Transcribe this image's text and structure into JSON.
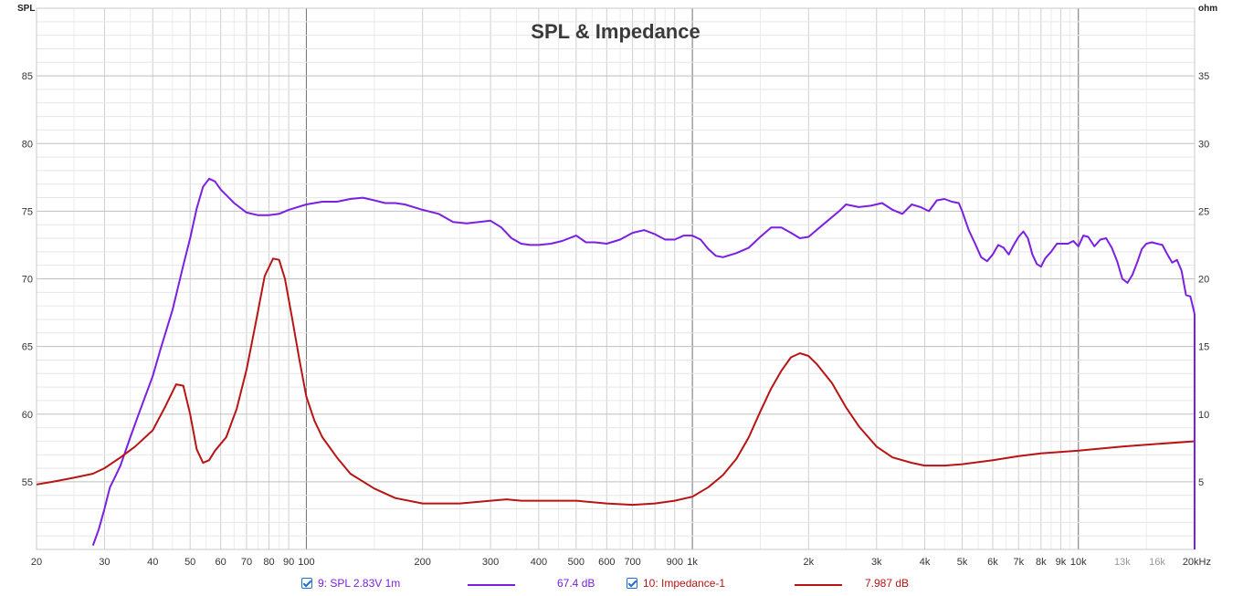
{
  "chart_data": {
    "type": "line",
    "title": "SPL & Impedance",
    "x_unit": "Hz",
    "x_scale": "log",
    "xlim": [
      20,
      20000
    ],
    "y_left": {
      "label": "SPL",
      "lim": [
        50,
        90
      ],
      "ticks": [
        "55",
        "60",
        "65",
        "70",
        "75",
        "80",
        "85"
      ]
    },
    "y_right": {
      "label": "ohm",
      "lim": [
        0,
        40
      ],
      "ticks": [
        "5",
        "10",
        "15",
        "20",
        "25",
        "30",
        "35"
      ]
    },
    "x_ticks": [
      {
        "v": 20,
        "t": "20"
      },
      {
        "v": 30,
        "t": "30"
      },
      {
        "v": 40,
        "t": "40"
      },
      {
        "v": 50,
        "t": "50"
      },
      {
        "v": 60,
        "t": "60"
      },
      {
        "v": 70,
        "t": "70"
      },
      {
        "v": 80,
        "t": "80"
      },
      {
        "v": 90,
        "t": "90"
      },
      {
        "v": 100,
        "t": "100"
      },
      {
        "v": 200,
        "t": "200"
      },
      {
        "v": 300,
        "t": "300"
      },
      {
        "v": 400,
        "t": "400"
      },
      {
        "v": 500,
        "t": "500"
      },
      {
        "v": 600,
        "t": "600"
      },
      {
        "v": 700,
        "t": "700"
      },
      {
        "v": 900,
        "t": "900"
      },
      {
        "v": 1000,
        "t": "1k"
      },
      {
        "v": 2000,
        "t": "2k"
      },
      {
        "v": 3000,
        "t": "3k"
      },
      {
        "v": 4000,
        "t": "4k"
      },
      {
        "v": 5000,
        "t": "5k"
      },
      {
        "v": 6000,
        "t": "6k"
      },
      {
        "v": 7000,
        "t": "7k"
      },
      {
        "v": 8000,
        "t": "8k"
      },
      {
        "v": 9000,
        "t": "9k"
      },
      {
        "v": 10000,
        "t": "10k"
      },
      {
        "v": 13000,
        "t": "13k",
        "minor": true
      },
      {
        "v": 16000,
        "t": "16k",
        "minor": true
      },
      {
        "v": 20000,
        "t": "20kHz"
      }
    ],
    "grid": true,
    "legend_position": "bottom",
    "series": [
      {
        "name": "9: SPL 2.83V 1m",
        "axis": "left",
        "color": "#7b1fe0",
        "value_label": "67.4 dB",
        "points": [
          [
            28,
            50.3
          ],
          [
            29,
            51.5
          ],
          [
            30,
            53
          ],
          [
            31,
            54.6
          ],
          [
            32,
            55.4
          ],
          [
            33,
            56.2
          ],
          [
            35,
            58.3
          ],
          [
            37,
            60.2
          ],
          [
            40,
            62.8
          ],
          [
            42,
            64.9
          ],
          [
            45,
            67.7
          ],
          [
            48,
            71
          ],
          [
            50,
            73
          ],
          [
            52,
            75.2
          ],
          [
            54,
            76.8
          ],
          [
            56,
            77.4
          ],
          [
            58,
            77.2
          ],
          [
            60,
            76.6
          ],
          [
            65,
            75.6
          ],
          [
            70,
            74.9
          ],
          [
            75,
            74.7
          ],
          [
            80,
            74.7
          ],
          [
            85,
            74.8
          ],
          [
            90,
            75.1
          ],
          [
            100,
            75.5
          ],
          [
            110,
            75.7
          ],
          [
            120,
            75.7
          ],
          [
            130,
            75.9
          ],
          [
            140,
            76
          ],
          [
            150,
            75.8
          ],
          [
            160,
            75.6
          ],
          [
            170,
            75.6
          ],
          [
            180,
            75.5
          ],
          [
            200,
            75.1
          ],
          [
            220,
            74.8
          ],
          [
            240,
            74.2
          ],
          [
            260,
            74.1
          ],
          [
            280,
            74.2
          ],
          [
            300,
            74.3
          ],
          [
            320,
            73.8
          ],
          [
            340,
            73
          ],
          [
            360,
            72.6
          ],
          [
            380,
            72.5
          ],
          [
            400,
            72.5
          ],
          [
            430,
            72.6
          ],
          [
            460,
            72.8
          ],
          [
            500,
            73.2
          ],
          [
            530,
            72.7
          ],
          [
            560,
            72.7
          ],
          [
            600,
            72.6
          ],
          [
            650,
            72.9
          ],
          [
            700,
            73.4
          ],
          [
            750,
            73.6
          ],
          [
            800,
            73.3
          ],
          [
            850,
            72.9
          ],
          [
            900,
            72.9
          ],
          [
            950,
            73.2
          ],
          [
            1000,
            73.2
          ],
          [
            1050,
            72.9
          ],
          [
            1100,
            72.2
          ],
          [
            1150,
            71.7
          ],
          [
            1200,
            71.6
          ],
          [
            1300,
            71.9
          ],
          [
            1400,
            72.3
          ],
          [
            1500,
            73.1
          ],
          [
            1600,
            73.8
          ],
          [
            1700,
            73.8
          ],
          [
            1800,
            73.4
          ],
          [
            1900,
            73
          ],
          [
            2000,
            73.1
          ],
          [
            2200,
            74.1
          ],
          [
            2400,
            75
          ],
          [
            2500,
            75.5
          ],
          [
            2700,
            75.3
          ],
          [
            2900,
            75.4
          ],
          [
            3100,
            75.6
          ],
          [
            3300,
            75.1
          ],
          [
            3500,
            74.8
          ],
          [
            3700,
            75.5
          ],
          [
            3900,
            75.3
          ],
          [
            4100,
            75
          ],
          [
            4300,
            75.8
          ],
          [
            4500,
            75.9
          ],
          [
            4700,
            75.7
          ],
          [
            4900,
            75.6
          ],
          [
            5000,
            75
          ],
          [
            5200,
            73.6
          ],
          [
            5400,
            72.6
          ],
          [
            5600,
            71.6
          ],
          [
            5800,
            71.3
          ],
          [
            6000,
            71.8
          ],
          [
            6200,
            72.5
          ],
          [
            6400,
            72.3
          ],
          [
            6600,
            71.8
          ],
          [
            6800,
            72.5
          ],
          [
            7000,
            73.1
          ],
          [
            7200,
            73.5
          ],
          [
            7400,
            73
          ],
          [
            7600,
            71.8
          ],
          [
            7800,
            71.1
          ],
          [
            8000,
            70.9
          ],
          [
            8200,
            71.5
          ],
          [
            8500,
            72
          ],
          [
            8800,
            72.6
          ],
          [
            9100,
            72.6
          ],
          [
            9400,
            72.6
          ],
          [
            9700,
            72.8
          ],
          [
            10000,
            72.4
          ],
          [
            10300,
            73.2
          ],
          [
            10600,
            73.1
          ],
          [
            11000,
            72.4
          ],
          [
            11400,
            72.9
          ],
          [
            11800,
            73
          ],
          [
            12200,
            72.3
          ],
          [
            12600,
            71.3
          ],
          [
            13000,
            70
          ],
          [
            13400,
            69.7
          ],
          [
            13800,
            70.3
          ],
          [
            14200,
            71.2
          ],
          [
            14600,
            72.2
          ],
          [
            15000,
            72.6
          ],
          [
            15500,
            72.7
          ],
          [
            16000,
            72.6
          ],
          [
            16500,
            72.5
          ],
          [
            17000,
            71.8
          ],
          [
            17500,
            71.2
          ],
          [
            18000,
            71.4
          ],
          [
            18500,
            70.6
          ],
          [
            19000,
            68.8
          ],
          [
            19500,
            68.7
          ],
          [
            20000,
            67.4
          ]
        ]
      },
      {
        "name": "10: Impedance-1",
        "axis": "right",
        "color": "#b81414",
        "value_label": "7.987 dB",
        "points": [
          [
            20,
            4.8
          ],
          [
            22,
            5
          ],
          [
            25,
            5.3
          ],
          [
            28,
            5.6
          ],
          [
            30,
            6
          ],
          [
            33,
            6.8
          ],
          [
            36,
            7.6
          ],
          [
            40,
            8.8
          ],
          [
            43,
            10.5
          ],
          [
            46,
            12.2
          ],
          [
            48,
            12.1
          ],
          [
            50,
            10
          ],
          [
            52,
            7.4
          ],
          [
            54,
            6.4
          ],
          [
            56,
            6.6
          ],
          [
            58,
            7.3
          ],
          [
            62,
            8.3
          ],
          [
            66,
            10.4
          ],
          [
            70,
            13.3
          ],
          [
            74,
            16.8
          ],
          [
            78,
            20.2
          ],
          [
            82,
            21.5
          ],
          [
            85,
            21.4
          ],
          [
            88,
            20
          ],
          [
            92,
            17
          ],
          [
            96,
            14
          ],
          [
            100,
            11.3
          ],
          [
            105,
            9.5
          ],
          [
            110,
            8.3
          ],
          [
            120,
            6.8
          ],
          [
            130,
            5.6
          ],
          [
            150,
            4.5
          ],
          [
            170,
            3.8
          ],
          [
            200,
            3.4
          ],
          [
            250,
            3.4
          ],
          [
            300,
            3.6
          ],
          [
            330,
            3.7
          ],
          [
            360,
            3.6
          ],
          [
            400,
            3.6
          ],
          [
            500,
            3.6
          ],
          [
            600,
            3.4
          ],
          [
            700,
            3.3
          ],
          [
            800,
            3.4
          ],
          [
            900,
            3.6
          ],
          [
            1000,
            3.9
          ],
          [
            1100,
            4.6
          ],
          [
            1200,
            5.5
          ],
          [
            1300,
            6.7
          ],
          [
            1400,
            8.3
          ],
          [
            1500,
            10.2
          ],
          [
            1600,
            11.9
          ],
          [
            1700,
            13.2
          ],
          [
            1800,
            14.2
          ],
          [
            1900,
            14.5
          ],
          [
            2000,
            14.3
          ],
          [
            2100,
            13.7
          ],
          [
            2300,
            12.3
          ],
          [
            2500,
            10.5
          ],
          [
            2700,
            9.1
          ],
          [
            3000,
            7.6
          ],
          [
            3300,
            6.8
          ],
          [
            3700,
            6.4
          ],
          [
            4000,
            6.2
          ],
          [
            4500,
            6.2
          ],
          [
            5000,
            6.3
          ],
          [
            6000,
            6.6
          ],
          [
            7000,
            6.9
          ],
          [
            8000,
            7.1
          ],
          [
            10000,
            7.3
          ],
          [
            13000,
            7.6
          ],
          [
            16000,
            7.8
          ],
          [
            20000,
            7.99
          ]
        ]
      }
    ]
  }
}
